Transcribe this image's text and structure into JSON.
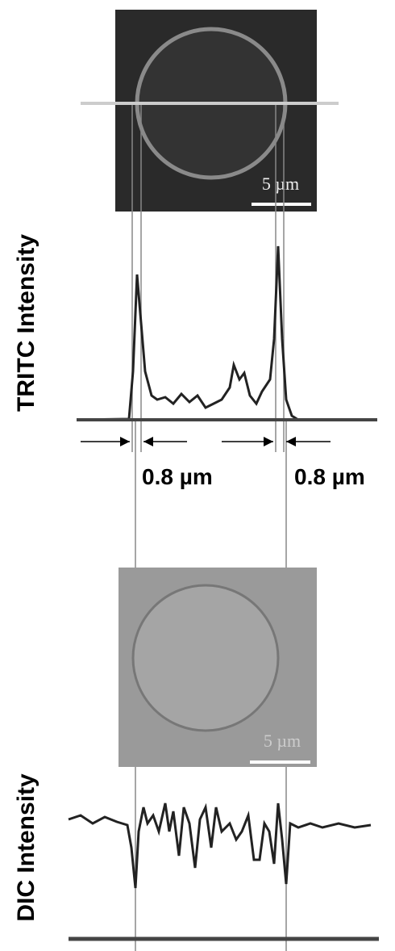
{
  "panels": [
    {
      "scale_bar": "5 µm",
      "axis_label": "TRITC Intensity",
      "widths": [
        "0.8 µm",
        "0.8 µm"
      ]
    },
    {
      "scale_bar": "5 µm",
      "axis_label": "DIC Intensity"
    }
  ]
}
